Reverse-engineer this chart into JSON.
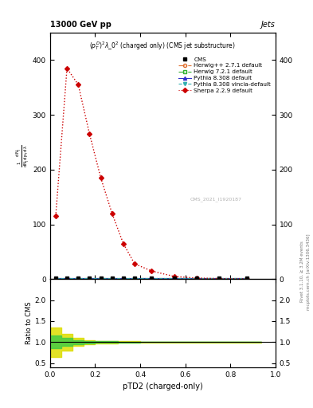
{
  "title_top_left": "13000 GeV pp",
  "title_top_right": "Jets",
  "subtitle": "$(p_T^D)^2\\lambda\\_0^2$ (charged only) (CMS jet substructure)",
  "watermark": "CMS_2021_I1920187",
  "xlabel": "pTD2 (charged-only)",
  "right_label_top": "Rivet 3.1.10, ≥ 3.2M events",
  "right_label_bottom": "mcplots.cern.ch [arXiv:1306.3436]",
  "ylim_main": [
    0,
    450
  ],
  "ylim_ratio": [
    0.4,
    2.5
  ],
  "xlim": [
    0,
    1.0
  ],
  "main_yticks": [
    0,
    100,
    200,
    300,
    400
  ],
  "ratio_yticks": [
    0.5,
    1.0,
    1.5,
    2.0
  ],
  "sherpa_x": [
    0.025,
    0.075,
    0.125,
    0.175,
    0.225,
    0.275,
    0.325,
    0.375,
    0.45,
    0.55,
    0.65,
    0.75,
    0.875
  ],
  "sherpa_y": [
    115,
    385,
    355,
    265,
    185,
    120,
    65,
    28,
    15,
    5,
    2,
    1,
    0.5
  ],
  "flat_x": [
    0.025,
    0.075,
    0.125,
    0.175,
    0.225,
    0.275,
    0.325,
    0.375,
    0.45,
    0.55,
    0.65,
    0.75,
    0.875
  ],
  "flat_y": [
    2,
    2,
    2,
    2,
    2,
    2,
    2,
    2,
    2,
    2,
    2,
    2,
    2
  ],
  "bin_widths": [
    0.05,
    0.05,
    0.05,
    0.05,
    0.05,
    0.05,
    0.05,
    0.05,
    0.1,
    0.1,
    0.1,
    0.1,
    0.125
  ],
  "ratio_yellow_lo": [
    0.65,
    0.8,
    0.9,
    0.95,
    0.97,
    0.97,
    0.98,
    0.98,
    0.99,
    0.99,
    0.99,
    0.99,
    0.99
  ],
  "ratio_yellow_hi": [
    1.35,
    1.2,
    1.1,
    1.05,
    1.03,
    1.03,
    1.02,
    1.02,
    1.01,
    1.01,
    1.01,
    1.01,
    1.01
  ],
  "ratio_green_lo": [
    0.85,
    0.9,
    0.95,
    0.97,
    0.98,
    0.98,
    0.99,
    0.99,
    0.995,
    0.995,
    0.995,
    0.995,
    0.995
  ],
  "ratio_green_hi": [
    1.15,
    1.1,
    1.05,
    1.03,
    1.02,
    1.02,
    1.01,
    1.01,
    1.005,
    1.005,
    1.005,
    1.005,
    1.005
  ],
  "colors": {
    "cms": "#000000",
    "herwig_pp": "#e07030",
    "herwig72": "#30b030",
    "pythia_default": "#3030cc",
    "pythia_vincia": "#30b0b0",
    "sherpa": "#cc0000",
    "green_band": "#44cc44",
    "yellow_band": "#dddd00"
  }
}
